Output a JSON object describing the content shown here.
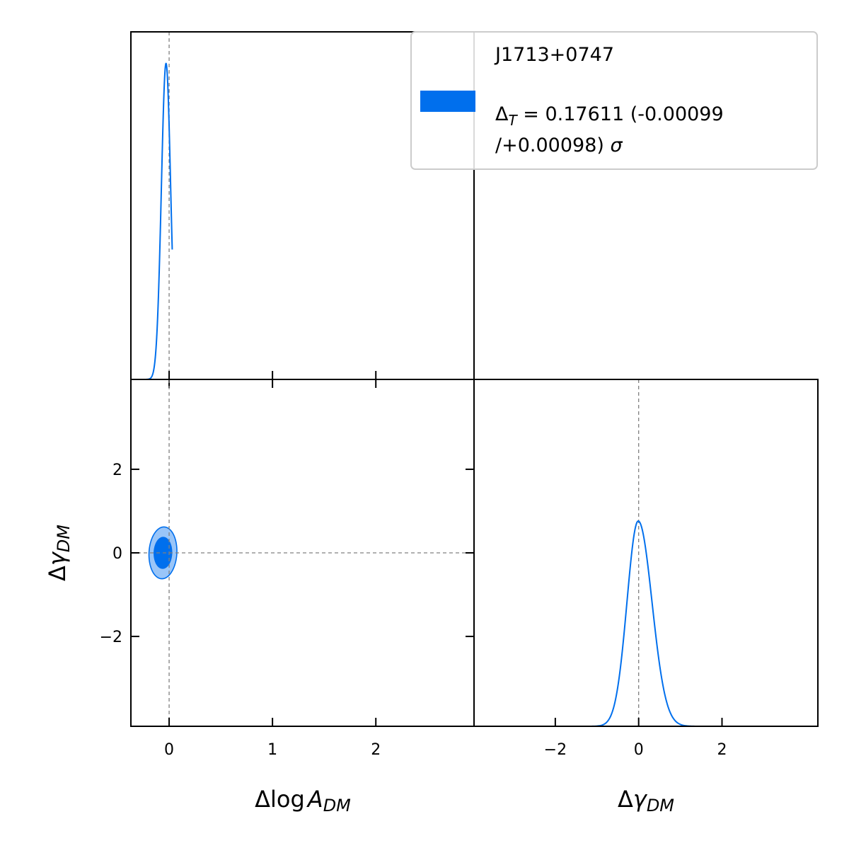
{
  "chart_data": {
    "type": "corner",
    "legend": {
      "placement": "top-right",
      "label": "J1713+0747",
      "line1_prefix": "Δ",
      "line1_sub": "T",
      "line1_rest": " = 0.17611 (-0.00099",
      "line2_rest": "/+0.00098) ",
      "line2_sigma": "σ",
      "color": "#006FED"
    },
    "color": "#006FED",
    "x_axes": [
      {
        "label_main": "Δlog",
        "label_var": "A",
        "label_sub": "DM",
        "range": [
          -0.37,
          2.95
        ],
        "ticks": [
          0,
          1,
          2
        ],
        "tick_labels": [
          "0",
          "1",
          "2"
        ],
        "truth": 0
      },
      {
        "label_main": "Δ",
        "label_var": "γ",
        "label_sub": "DM",
        "range": [
          -3.95,
          4.3
        ],
        "ticks": [
          -2,
          0,
          2
        ],
        "tick_labels": [
          "−2",
          "0",
          "2"
        ],
        "truth": 0
      }
    ],
    "y_axis": {
      "label_main": "Δ",
      "label_var": "γ",
      "label_sub": "DM",
      "range": [
        -4.15,
        4.15
      ],
      "ticks": [
        -2,
        0,
        2
      ],
      "tick_labels": [
        "−2",
        "0",
        "2"
      ],
      "truth": 0
    },
    "marginal_log_A_dm": {
      "peak_x": -0.03,
      "sigma": 0.045,
      "ymax": 1.0,
      "ylim": [
        0,
        1.1
      ]
    },
    "marginal_gamma_dm": {
      "peak_x": -0.01,
      "sigma_left": 0.27,
      "sigma_right": 0.33,
      "ymax": 1.0,
      "ylim": [
        0,
        1.69
      ]
    },
    "contours_2d": {
      "center": [
        -0.06,
        0.0
      ],
      "inner_1sigma": {
        "semi_x": 0.085,
        "semi_y": 0.37,
        "tilt_deg": -3
      },
      "outer_2sigma": {
        "semi_x": 0.135,
        "semi_y": 0.62,
        "tilt_deg": -6
      }
    }
  }
}
